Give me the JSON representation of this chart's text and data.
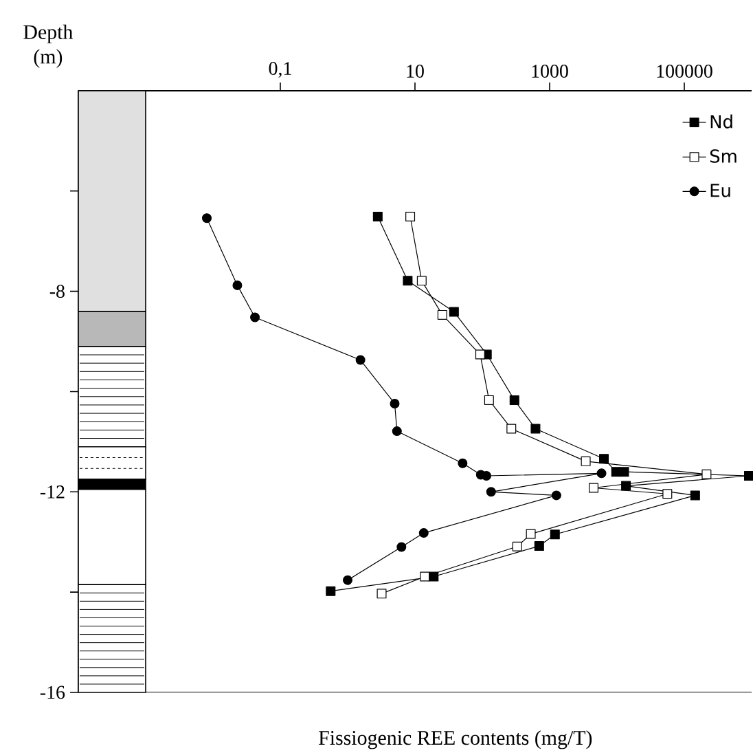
{
  "chart_data": {
    "type": "line",
    "xlabel": "Fissiogenic REE contents (mg/T)",
    "ylabel": "Depth (m)",
    "log": "x",
    "xlim": [
      0.0001,
      1000000
    ],
    "xticks": [
      {
        "value": 0.1,
        "label": "0,1"
      },
      10,
      1000,
      100000
    ],
    "ylim": [
      -16,
      -4
    ],
    "yticks": [
      -16,
      {
        "value": -14,
        "label": null
      },
      -12,
      {
        "value": -10,
        "label": null
      },
      -8,
      {
        "value": -6,
        "label": null
      }
    ],
    "legend": "top right",
    "line_style": "solid",
    "series": [
      {
        "name": "Nd",
        "color": "#000000",
        "marker": "square",
        "x": [
          2.8,
          7.8,
          38,
          117,
          300,
          617,
          6400,
          9700,
          12800,
          910000,
          13600,
          145000,
          1200,
          700,
          19,
          0.56
        ],
        "values": [
          -6.51,
          -7.79,
          -8.41,
          -9.26,
          -10.17,
          -10.74,
          -11.34,
          -11.6,
          -11.6,
          -11.68,
          -11.88,
          -12.07,
          -12.85,
          -13.08,
          -13.69,
          -13.98
        ]
      },
      {
        "name": "Sm",
        "color": "#ffffff",
        "marker": "square",
        "x": [
          8.5,
          12.6,
          25.5,
          93,
          126,
          270,
          3440,
          214000,
          4500,
          56000,
          525,
          330,
          14,
          3.2
        ],
        "values": [
          -6.51,
          -7.79,
          -8.47,
          -9.26,
          -10.17,
          -10.74,
          -11.39,
          -11.65,
          -11.92,
          -12.04,
          -12.84,
          -13.09,
          -13.69,
          -14.03
        ]
      },
      {
        "name": "Eu",
        "color": "#000000",
        "marker": "circle",
        "x": [
          0.0081,
          0.023,
          0.042,
          1.55,
          5.0,
          5.4,
          51,
          95,
          115,
          5900,
          135,
          1260,
          13.5,
          6.3,
          1.0
        ],
        "values": [
          -6.54,
          -7.88,
          -8.52,
          -9.37,
          -10.24,
          -10.79,
          -11.43,
          -11.66,
          -11.68,
          -11.63,
          -12.0,
          -12.07,
          -12.82,
          -13.1,
          -13.76
        ]
      }
    ]
  }
}
